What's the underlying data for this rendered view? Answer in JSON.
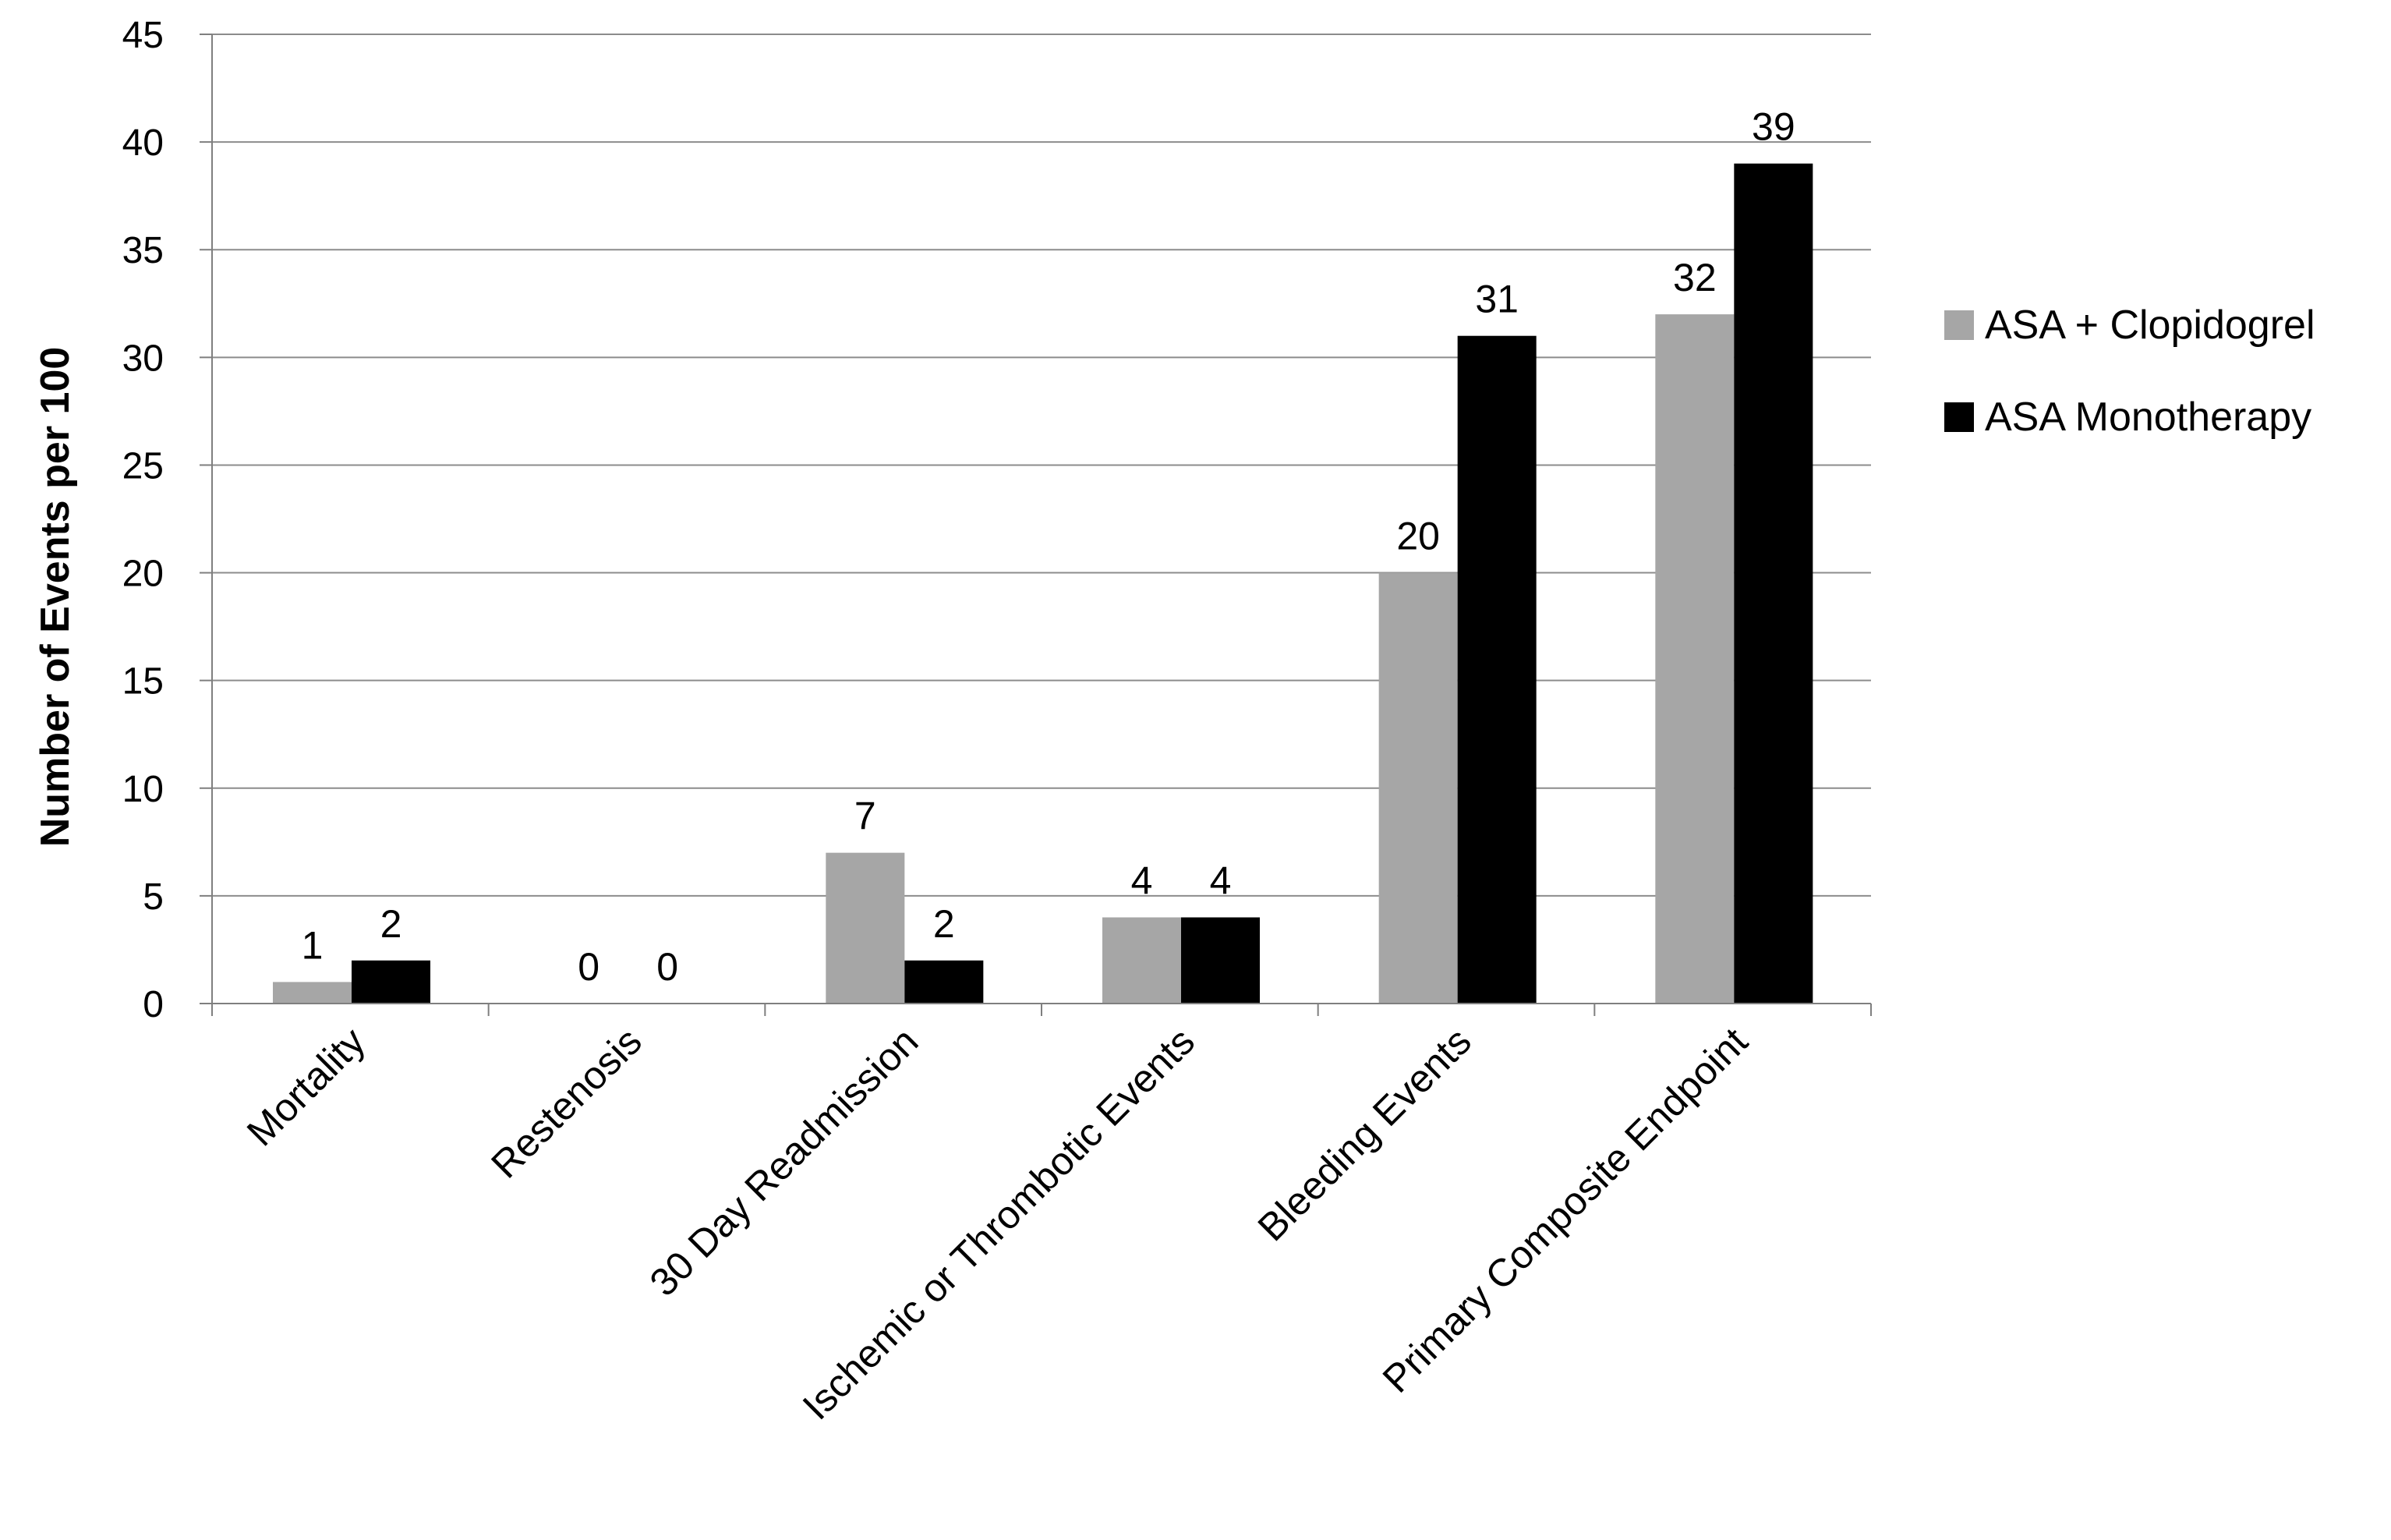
{
  "chart_data": {
    "type": "bar",
    "title": "",
    "xlabel": "",
    "ylabel": "Number of Events per 100",
    "ylim": [
      0,
      45
    ],
    "yticks": [
      0,
      5,
      10,
      15,
      20,
      25,
      30,
      35,
      40,
      45
    ],
    "grid": true,
    "legend_position": "right",
    "categories": [
      "Mortality",
      "Restenosis",
      "30 Day Readmission",
      "Ischemic or Thrombotic Events",
      "Bleeding Events",
      "Primary Composite Endpoint"
    ],
    "series": [
      {
        "name": "ASA + Clopidogrel",
        "color": "#a6a6a6",
        "values": [
          1,
          0,
          7,
          4,
          20,
          32
        ]
      },
      {
        "name": "ASA Monotherapy",
        "color": "#000000",
        "values": [
          2,
          0,
          2,
          4,
          31,
          39
        ]
      }
    ],
    "colors": {
      "gridline": "#8c8c8c",
      "axis": "#7f7f7f",
      "text": "#000000"
    }
  }
}
